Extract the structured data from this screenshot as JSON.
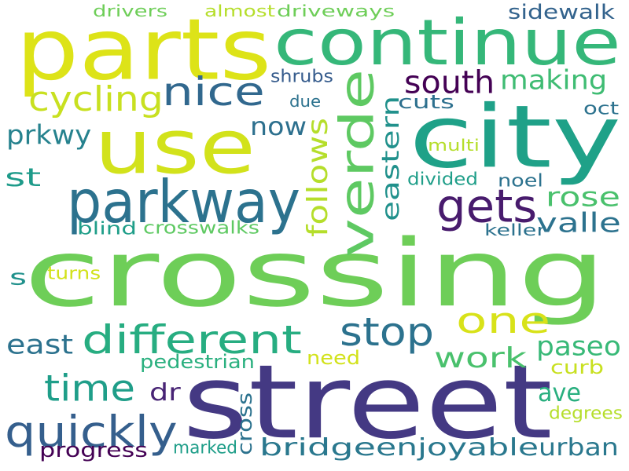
{
  "words": [
    {
      "text": "crossing",
      "color": "#6ece58",
      "vertical": false
    },
    {
      "text": "street",
      "color": "#443983",
      "vertical": false
    },
    {
      "text": "use",
      "color": "#d2e21b",
      "vertical": false
    },
    {
      "text": "city",
      "color": "#1fa188",
      "vertical": false
    },
    {
      "text": "parts",
      "color": "#dde318",
      "vertical": false
    },
    {
      "text": "continue",
      "color": "#35b779",
      "vertical": false
    },
    {
      "text": "parkway",
      "color": "#2c728e",
      "vertical": false
    },
    {
      "text": "verde",
      "color": "#5ec962",
      "vertical": true
    },
    {
      "text": "gets",
      "color": "#481b6d",
      "vertical": false
    },
    {
      "text": "nice",
      "color": "#31688e",
      "vertical": false
    },
    {
      "text": "cycling",
      "color": "#c8e020",
      "vertical": false
    },
    {
      "text": "different",
      "color": "#27ad81",
      "vertical": false
    },
    {
      "text": "stop",
      "color": "#2c728e",
      "vertical": false
    },
    {
      "text": "one",
      "color": "#d8e219",
      "vertical": false
    },
    {
      "text": "time",
      "color": "#1f9e89",
      "vertical": false
    },
    {
      "text": "quickly",
      "color": "#355f8d",
      "vertical": false
    },
    {
      "text": "bridge",
      "color": "#2a788e",
      "vertical": false
    },
    {
      "text": "enjoyable",
      "color": "#2a788e",
      "vertical": false
    },
    {
      "text": "urban",
      "color": "#2a788e",
      "vertical": false
    },
    {
      "text": "follows",
      "color": "#b5de2b",
      "vertical": true
    },
    {
      "text": "eastern",
      "color": "#21918c",
      "vertical": true
    },
    {
      "text": "south",
      "color": "#440154",
      "vertical": false
    },
    {
      "text": "making",
      "color": "#3fbc73",
      "vertical": false
    },
    {
      "text": "sidewalk",
      "color": "#33638d",
      "vertical": false
    },
    {
      "text": "now",
      "color": "#2d708e",
      "vertical": false
    },
    {
      "text": "rose",
      "color": "#4ac16d",
      "vertical": false
    },
    {
      "text": "valle",
      "color": "#2c728e",
      "vertical": false
    },
    {
      "text": "prkwy",
      "color": "#26828e",
      "vertical": false
    },
    {
      "text": "st",
      "color": "#1e9b8a",
      "vertical": false
    },
    {
      "text": "s",
      "color": "#21918c",
      "vertical": false
    },
    {
      "text": "east",
      "color": "#2c728e",
      "vertical": false
    },
    {
      "text": "work",
      "color": "#4ac16d",
      "vertical": false
    },
    {
      "text": "paseo",
      "color": "#38b977",
      "vertical": false
    },
    {
      "text": "ave",
      "color": "#29af7f",
      "vertical": false
    },
    {
      "text": "dr",
      "color": "#482475",
      "vertical": false
    },
    {
      "text": "progress",
      "color": "#440154",
      "vertical": false
    },
    {
      "text": "cuts",
      "color": "#2d708e",
      "vertical": false
    },
    {
      "text": "shrubs",
      "color": "#365c8d",
      "vertical": false
    },
    {
      "text": "due",
      "color": "#2c728e",
      "vertical": false
    },
    {
      "text": "oct",
      "color": "#2c728e",
      "vertical": false
    },
    {
      "text": "multi",
      "color": "#b5de2b",
      "vertical": false
    },
    {
      "text": "divided",
      "color": "#1f9e89",
      "vertical": false
    },
    {
      "text": "noel",
      "color": "#2c728e",
      "vertical": false
    },
    {
      "text": "keller",
      "color": "#2c728e",
      "vertical": false
    },
    {
      "text": "blind",
      "color": "#1f9e89",
      "vertical": false
    },
    {
      "text": "crosswalks",
      "color": "#5ec962",
      "vertical": false
    },
    {
      "text": "turns",
      "color": "#d2e21b",
      "vertical": false
    },
    {
      "text": "need",
      "color": "#d2e21b",
      "vertical": false
    },
    {
      "text": "pedestrian",
      "color": "#2ab07f",
      "vertical": false
    },
    {
      "text": "curb",
      "color": "#c8e020",
      "vertical": false
    },
    {
      "text": "cross",
      "color": "#2c728e",
      "vertical": true
    },
    {
      "text": "marked",
      "color": "#1f9e89",
      "vertical": false
    },
    {
      "text": "degrees",
      "color": "#b5de2b",
      "vertical": false
    },
    {
      "text": "drivers",
      "color": "#6ece58",
      "vertical": false
    },
    {
      "text": "almost",
      "color": "#b5de2b",
      "vertical": false
    },
    {
      "text": "driveways",
      "color": "#6ece58",
      "vertical": false
    }
  ]
}
